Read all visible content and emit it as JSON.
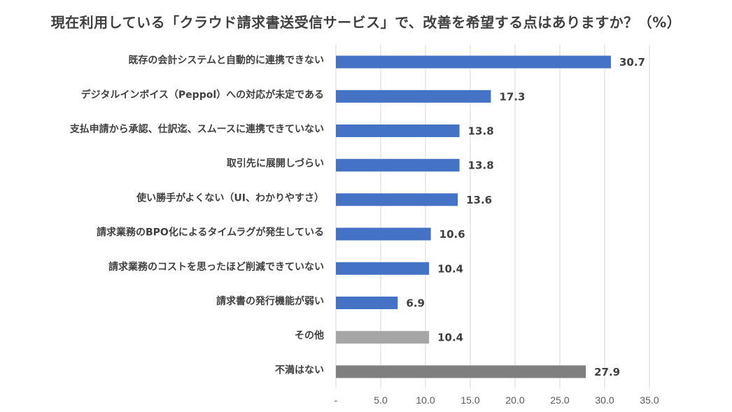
{
  "chart_data": {
    "type": "bar",
    "orientation": "horizontal",
    "title": "現在利用している「クラウド請求書送受信サービス」で、改善を希望する点はありますか？（%）",
    "categories": [
      "既存の会計システムと自動的に連携できない",
      "デジタルインボイス（Peppol）への対応が未定である",
      "支払申請から承認、仕訳迄、スムースに連携できていない",
      "取引先に展開しづらい",
      "使い勝手がよくない（UI、わかりやすさ）",
      "請求業務のBPO化によるタイムラグが発生している",
      "請求業務のコストを思ったほど削減できていない",
      "請求書の発行機能が弱い",
      "その他",
      "不満はない"
    ],
    "values": [
      30.7,
      17.3,
      13.8,
      13.8,
      13.6,
      10.6,
      10.4,
      6.9,
      10.4,
      27.9
    ],
    "value_labels": [
      "30.7",
      "17.3",
      "13.8",
      "13.8",
      "13.6",
      "10.6",
      "10.4",
      "6.9",
      "10.4",
      "27.9"
    ],
    "bar_colors": [
      "#4472c4",
      "#4472c4",
      "#4472c4",
      "#4472c4",
      "#4472c4",
      "#4472c4",
      "#4472c4",
      "#4472c4",
      "#a6a6a6",
      "#7f7f7f"
    ],
    "xlim": [
      0,
      35
    ],
    "xticks": [
      0,
      5,
      10,
      15,
      20,
      25,
      30,
      35
    ],
    "xtick_labels": [
      "-",
      "5.0",
      "10.0",
      "15.0",
      "20.0",
      "25.0",
      "30.0",
      "35.0"
    ],
    "grid": true,
    "legend": "none",
    "xlabel": "",
    "ylabel": ""
  }
}
